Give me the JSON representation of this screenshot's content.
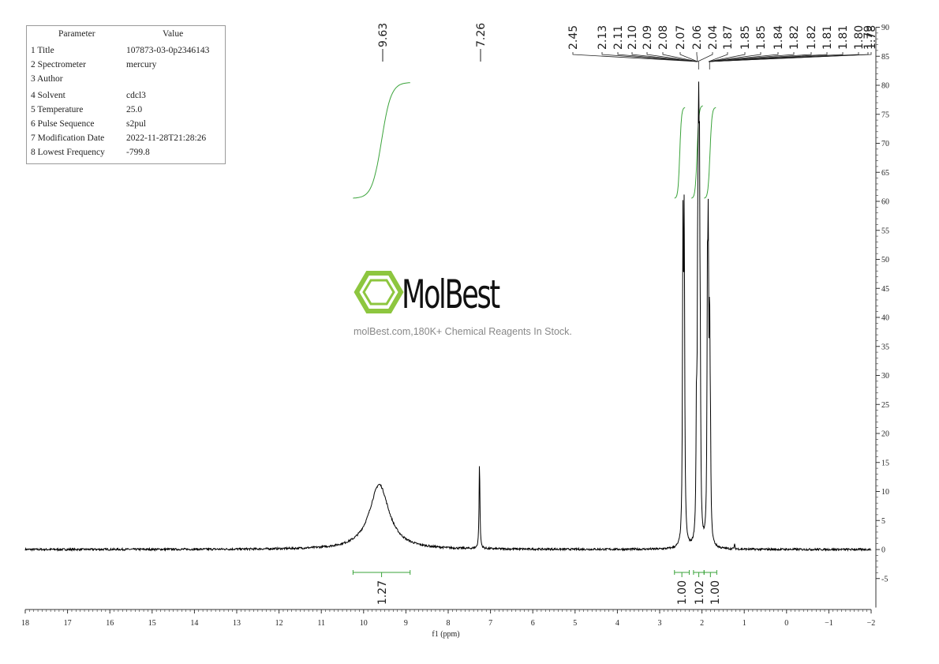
{
  "parameters": {
    "header": {
      "param": "Parameter",
      "value": "Value"
    },
    "rows": [
      {
        "label": "1 Title",
        "value": "107873-03-0p2346143"
      },
      {
        "label": "2 Spectrometer",
        "value": "mercury"
      },
      {
        "label": "3 Author",
        "value": ""
      },
      {
        "label": "4 Solvent",
        "value": "cdcl3"
      },
      {
        "label": "5 Temperature",
        "value": "25.0"
      },
      {
        "label": "6 Pulse Sequence",
        "value": "s2pul"
      },
      {
        "label": "7 Modification Date",
        "value": "2022-11-28T21:28:26"
      },
      {
        "label": "8 Lowest Frequency",
        "value": "-799.8"
      }
    ]
  },
  "watermark": {
    "brand": "MolBest",
    "tagline": "molBest.com,180K+ Chemical Reagents In Stock.",
    "color": "#8dc63f"
  },
  "chart_data": {
    "type": "line",
    "xlabel": "f1 (ppm)",
    "xlim": [
      18,
      -2
    ],
    "ylim": [
      -10,
      90
    ],
    "x_ticks": [
      18,
      17,
      16,
      15,
      14,
      13,
      12,
      11,
      10,
      9,
      8,
      7,
      6,
      5,
      4,
      3,
      2,
      1,
      0,
      -1,
      -2
    ],
    "x_tick_labels": [
      "18",
      "17",
      "16",
      "15",
      "14",
      "13",
      "12",
      "11",
      "10",
      "9",
      "8",
      "7",
      "6",
      "5",
      "4",
      "3",
      "2",
      "1",
      "0",
      "−1",
      "−2"
    ],
    "y_ticks": [
      -5,
      0,
      5,
      10,
      15,
      20,
      25,
      30,
      35,
      40,
      45,
      50,
      55,
      60,
      65,
      70,
      75,
      80,
      85,
      90
    ],
    "y_tick_labels": [
      "-5",
      "0",
      "5",
      "10",
      "15",
      "20",
      "25",
      "30",
      "35",
      "40",
      "45",
      "50",
      "55",
      "60",
      "65",
      "70",
      "75",
      "80",
      "85",
      "90"
    ],
    "peaks": [
      {
        "ppm": 9.63,
        "height": 11.2,
        "width": 0.28,
        "shape": "lorentz"
      },
      {
        "ppm": 7.26,
        "height": 15.0,
        "width": 0.012,
        "shape": "lorentz"
      },
      {
        "ppm": 2.45,
        "height": 50.0,
        "width": 0.012,
        "shape": "lorentz"
      },
      {
        "ppm": 2.42,
        "height": 54.0,
        "width": 0.014,
        "shape": "lorentz"
      },
      {
        "ppm": 2.13,
        "height": 20.0,
        "width": 0.012,
        "shape": "lorentz"
      },
      {
        "ppm": 2.1,
        "height": 40.0,
        "width": 0.012,
        "shape": "lorentz"
      },
      {
        "ppm": 2.08,
        "height": 55.0,
        "width": 0.012,
        "shape": "lorentz"
      },
      {
        "ppm": 2.06,
        "height": 52.0,
        "width": 0.012,
        "shape": "lorentz"
      },
      {
        "ppm": 2.04,
        "height": 22.0,
        "width": 0.012,
        "shape": "lorentz"
      },
      {
        "ppm": 1.87,
        "height": 40.0,
        "width": 0.012,
        "shape": "lorentz"
      },
      {
        "ppm": 1.85,
        "height": 44.0,
        "width": 0.012,
        "shape": "lorentz"
      },
      {
        "ppm": 1.82,
        "height": 34.0,
        "width": 0.012,
        "shape": "lorentz"
      },
      {
        "ppm": 1.8,
        "height": 14.0,
        "width": 0.012,
        "shape": "lorentz"
      },
      {
        "ppm": 1.23,
        "height": 0.8,
        "width": 0.01,
        "shape": "lorentz"
      }
    ],
    "peak_labels": [
      "9.63",
      "7.26"
    ],
    "multiplet_labels": [
      "2.45",
      "2.13",
      "2.11",
      "2.10",
      "2.09",
      "2.08",
      "2.07",
      "2.06",
      "2.04",
      "1.87",
      "1.85",
      "1.85",
      "1.84",
      "1.82",
      "1.82",
      "1.81",
      "1.81",
      "1.80",
      "1.79",
      "1.78"
    ],
    "integrations": [
      {
        "from": 10.25,
        "to": 8.9,
        "label": "1.27"
      },
      {
        "from": 2.65,
        "to": 2.3,
        "label": "1.00"
      },
      {
        "from": 2.2,
        "to": 1.95,
        "label": "1.02"
      },
      {
        "from": 1.95,
        "to": 1.65,
        "label": "1.00"
      }
    ],
    "colors": {
      "spectrum": "#000000",
      "integral": "#3aa33a",
      "axis": "#333333"
    }
  }
}
